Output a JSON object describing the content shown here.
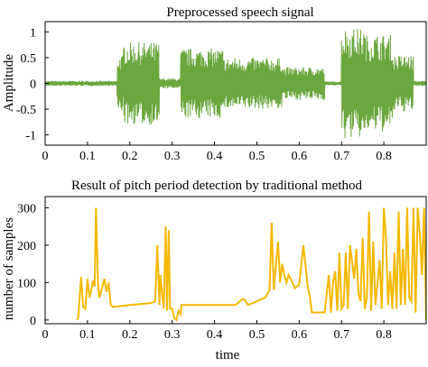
{
  "chart_data": [
    {
      "type": "line",
      "title": "Preprocessed speech signal",
      "xlabel": "",
      "ylabel": "Amplitude",
      "xlim": [
        0,
        0.9
      ],
      "ylim": [
        -1.2,
        1.2
      ],
      "xticks": [
        0,
        0.1,
        0.2,
        0.3,
        0.4,
        0.5,
        0.6,
        0.7,
        0.8
      ],
      "xtick_labels": [
        "0",
        "0.1",
        "0.2",
        "0.3",
        "0.4",
        "0.5",
        "0.6",
        "0.7",
        "0.8"
      ],
      "yticks": [
        1,
        0.5,
        0,
        -0.5,
        -1
      ],
      "ytick_labels": [
        "1",
        "0.5",
        "0",
        "-0.5",
        "-1"
      ],
      "color": "#6aa73d",
      "grid": false,
      "segments": [
        {
          "x0": 0.0,
          "x1": 0.17,
          "amp": 0.05
        },
        {
          "x0": 0.17,
          "x1": 0.185,
          "amp": 0.55
        },
        {
          "x0": 0.185,
          "x1": 0.27,
          "amp": 0.8
        },
        {
          "x0": 0.27,
          "x1": 0.32,
          "amp": 0.1
        },
        {
          "x0": 0.32,
          "x1": 0.42,
          "amp": 0.68
        },
        {
          "x0": 0.42,
          "x1": 0.56,
          "amp": 0.5
        },
        {
          "x0": 0.56,
          "x1": 0.66,
          "amp": 0.32
        },
        {
          "x0": 0.66,
          "x1": 0.7,
          "amp": 0.04
        },
        {
          "x0": 0.7,
          "x1": 0.755,
          "amp": 1.08
        },
        {
          "x0": 0.755,
          "x1": 0.82,
          "amp": 0.95
        },
        {
          "x0": 0.82,
          "x1": 0.87,
          "amp": 0.55
        },
        {
          "x0": 0.87,
          "x1": 0.9,
          "amp": 0.05
        }
      ]
    },
    {
      "type": "line",
      "title": "Result of pitch period detection by traditional method",
      "xlabel": "time",
      "ylabel": "number of samples",
      "xlim": [
        0,
        0.9
      ],
      "ylim": [
        -10,
        330
      ],
      "xticks": [
        0,
        0.1,
        0.2,
        0.3,
        0.4,
        0.5,
        0.6,
        0.7,
        0.8
      ],
      "xtick_labels": [
        "0",
        "0.1",
        "0.2",
        "0.3",
        "0.4",
        "0.5",
        "0.6",
        "0.7",
        "0.8"
      ],
      "yticks": [
        0,
        100,
        200,
        300
      ],
      "ytick_labels": [
        "0",
        "100",
        "200",
        "300"
      ],
      "color": "#f5b800",
      "grid": false,
      "x": [
        0.075,
        0.078,
        0.085,
        0.09,
        0.095,
        0.1,
        0.105,
        0.11,
        0.113,
        0.117,
        0.12,
        0.125,
        0.128,
        0.133,
        0.14,
        0.145,
        0.15,
        0.155,
        0.16,
        0.2,
        0.25,
        0.26,
        0.265,
        0.27,
        0.272,
        0.28,
        0.285,
        0.288,
        0.292,
        0.295,
        0.3,
        0.305,
        0.31,
        0.315,
        0.32,
        0.322,
        0.33,
        0.34,
        0.4,
        0.45,
        0.465,
        0.47,
        0.48,
        0.5,
        0.52,
        0.53,
        0.535,
        0.54,
        0.55,
        0.555,
        0.56,
        0.565,
        0.57,
        0.575,
        0.58,
        0.59,
        0.6,
        0.61,
        0.62,
        0.625,
        0.63,
        0.64,
        0.66,
        0.67,
        0.675,
        0.68,
        0.685,
        0.69,
        0.695,
        0.7,
        0.705,
        0.71,
        0.715,
        0.72,
        0.73,
        0.735,
        0.74,
        0.745,
        0.75,
        0.755,
        0.76,
        0.765,
        0.77,
        0.775,
        0.78,
        0.79,
        0.795,
        0.8,
        0.805,
        0.81,
        0.815,
        0.82,
        0.825,
        0.83,
        0.835,
        0.84,
        0.845,
        0.85,
        0.855,
        0.86,
        0.865,
        0.87,
        0.875,
        0.88,
        0.885,
        0.89,
        0.895,
        0.9
      ],
      "y": [
        0,
        5,
        115,
        35,
        30,
        110,
        60,
        85,
        105,
        90,
        300,
        90,
        60,
        80,
        110,
        75,
        100,
        40,
        35,
        40,
        45,
        50,
        200,
        40,
        120,
        30,
        250,
        25,
        240,
        30,
        30,
        5,
        0,
        25,
        15,
        40,
        40,
        40,
        40,
        40,
        55,
        55,
        40,
        50,
        60,
        80,
        260,
        80,
        210,
        100,
        150,
        120,
        100,
        120,
        110,
        85,
        95,
        200,
        90,
        65,
        20,
        20,
        20,
        120,
        20,
        100,
        130,
        25,
        180,
        30,
        40,
        180,
        30,
        200,
        110,
        190,
        70,
        50,
        220,
        30,
        60,
        290,
        25,
        210,
        40,
        160,
        30,
        300,
        220,
        40,
        130,
        30,
        180,
        30,
        290,
        40,
        190,
        40,
        300,
        60,
        50,
        300,
        20,
        300,
        230,
        120,
        300,
        0
      ]
    }
  ]
}
